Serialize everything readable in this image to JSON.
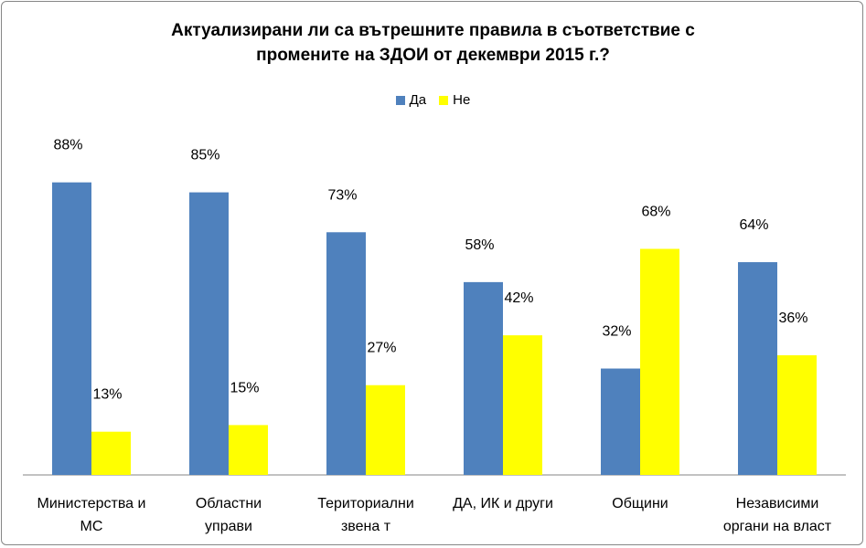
{
  "chart_data": {
    "type": "bar",
    "title_lines": [
      "Актуализирани ли са вътрешните правила в съответствие с",
      "промените на ЗДОИ от декември 2015 г.?"
    ],
    "categories": [
      [
        "Министерства и",
        "МС"
      ],
      [
        "Областни",
        "управи"
      ],
      [
        "Териториални",
        "звена т"
      ],
      [
        "ДА, ИК и други"
      ],
      [
        "Общини"
      ],
      [
        "Независими",
        "органи на власт"
      ]
    ],
    "series": [
      {
        "name": "Да",
        "color": "#4F81BD",
        "values": [
          88,
          85,
          73,
          58,
          32,
          64
        ],
        "labels": [
          "88%",
          "85%",
          "73%",
          "58%",
          "32%",
          "64%"
        ]
      },
      {
        "name": "Не",
        "color": "#FFFF00",
        "values": [
          13,
          15,
          27,
          42,
          68,
          36
        ],
        "labels": [
          "13%",
          "15%",
          "27%",
          "42%",
          "68%",
          "36%"
        ]
      }
    ],
    "ylim": [
      0,
      100
    ],
    "grid": false,
    "legend_position": "top"
  }
}
